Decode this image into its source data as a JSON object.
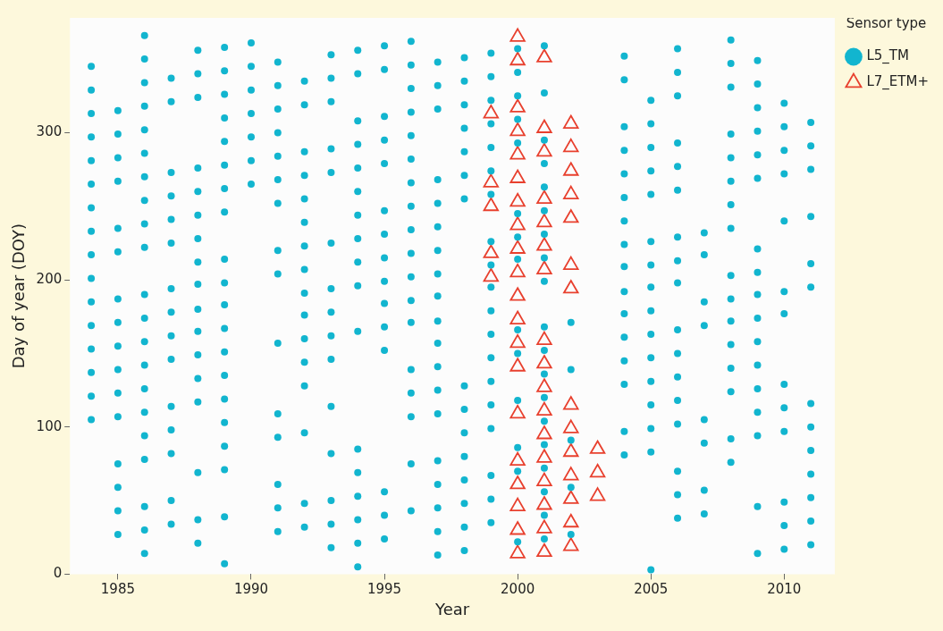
{
  "chart_data": {
    "type": "scatter",
    "xlabel": "Year",
    "ylabel": "Day of year (DOY)",
    "legend_title": "Sensor type",
    "legend": "top right",
    "grid": false,
    "xlim": [
      1983.2,
      2011.9
    ],
    "xticks": [
      1985,
      1990,
      1995,
      2000,
      2005,
      2010
    ],
    "ylim": [
      0,
      378
    ],
    "yticks": [
      0,
      100,
      200,
      300
    ],
    "series": [
      {
        "name": "L5_TM",
        "color": "#12b5cf",
        "marker": "circle",
        "x": [
          1984,
          1984,
          1984,
          1984,
          1984,
          1984,
          1984,
          1984,
          1984,
          1984,
          1984,
          1984,
          1984,
          1984,
          1984,
          1984,
          1985,
          1985,
          1985,
          1985,
          1985,
          1985,
          1985,
          1985,
          1985,
          1985,
          1985,
          1985,
          1985,
          1985,
          1985,
          1985,
          1986,
          1986,
          1986,
          1986,
          1986,
          1986,
          1986,
          1986,
          1986,
          1986,
          1986,
          1986,
          1986,
          1986,
          1986,
          1986,
          1986,
          1986,
          1986,
          1986,
          1986,
          1987,
          1987,
          1987,
          1987,
          1987,
          1987,
          1987,
          1987,
          1987,
          1987,
          1987,
          1987,
          1987,
          1987,
          1987,
          1988,
          1988,
          1988,
          1988,
          1988,
          1988,
          1988,
          1988,
          1988,
          1988,
          1988,
          1988,
          1988,
          1988,
          1988,
          1988,
          1988,
          1989,
          1989,
          1989,
          1989,
          1989,
          1989,
          1989,
          1989,
          1989,
          1989,
          1989,
          1989,
          1989,
          1989,
          1989,
          1989,
          1989,
          1989,
          1989,
          1989,
          1990,
          1990,
          1990,
          1990,
          1990,
          1990,
          1990,
          1991,
          1991,
          1991,
          1991,
          1991,
          1991,
          1991,
          1991,
          1991,
          1991,
          1991,
          1991,
          1991,
          1991,
          1991,
          1992,
          1992,
          1992,
          1992,
          1992,
          1992,
          1992,
          1992,
          1992,
          1992,
          1992,
          1992,
          1992,
          1992,
          1992,
          1992,
          1993,
          1993,
          1993,
          1993,
          1993,
          1993,
          1993,
          1993,
          1993,
          1993,
          1993,
          1993,
          1993,
          1993,
          1993,
          1994,
          1994,
          1994,
          1994,
          1994,
          1994,
          1994,
          1994,
          1994,
          1994,
          1994,
          1994,
          1994,
          1994,
          1994,
          1994,
          1994,
          1995,
          1995,
          1995,
          1995,
          1995,
          1995,
          1995,
          1995,
          1995,
          1995,
          1995,
          1995,
          1995,
          1995,
          1995,
          1996,
          1996,
          1996,
          1996,
          1996,
          1996,
          1996,
          1996,
          1996,
          1996,
          1996,
          1996,
          1996,
          1996,
          1996,
          1996,
          1996,
          1996,
          1997,
          1997,
          1997,
          1997,
          1997,
          1997,
          1997,
          1997,
          1997,
          1997,
          1997,
          1997,
          1997,
          1997,
          1997,
          1997,
          1997,
          1997,
          1997,
          1998,
          1998,
          1998,
          1998,
          1998,
          1998,
          1998,
          1998,
          1998,
          1998,
          1998,
          1998,
          1998,
          1998,
          1998,
          1999,
          1999,
          1999,
          1999,
          1999,
          1999,
          1999,
          1999,
          1999,
          1999,
          1999,
          1999,
          1999,
          1999,
          1999,
          1999,
          1999,
          1999,
          1999,
          2000,
          2000,
          2000,
          2000,
          2000,
          2000,
          2000,
          2000,
          2000,
          2000,
          2000,
          2000,
          2000,
          2000,
          2001,
          2001,
          2001,
          2001,
          2001,
          2001,
          2001,
          2001,
          2001,
          2001,
          2001,
          2001,
          2001,
          2001,
          2001,
          2001,
          2001,
          2001,
          2001,
          2002,
          2002,
          2002,
          2002,
          2002,
          2004,
          2004,
          2004,
          2004,
          2004,
          2004,
          2004,
          2004,
          2004,
          2004,
          2004,
          2004,
          2004,
          2004,
          2004,
          2004,
          2005,
          2005,
          2005,
          2005,
          2005,
          2005,
          2005,
          2005,
          2005,
          2005,
          2005,
          2005,
          2005,
          2005,
          2005,
          2005,
          2006,
          2006,
          2006,
          2006,
          2006,
          2006,
          2006,
          2006,
          2006,
          2006,
          2006,
          2006,
          2006,
          2006,
          2006,
          2006,
          2006,
          2007,
          2007,
          2007,
          2007,
          2007,
          2007,
          2007,
          2007,
          2008,
          2008,
          2008,
          2008,
          2008,
          2008,
          2008,
          2008,
          2008,
          2008,
          2008,
          2008,
          2008,
          2008,
          2008,
          2008,
          2009,
          2009,
          2009,
          2009,
          2009,
          2009,
          2009,
          2009,
          2009,
          2009,
          2009,
          2009,
          2009,
          2009,
          2009,
          2009,
          2009,
          2010,
          2010,
          2010,
          2010,
          2010,
          2010,
          2010,
          2010,
          2010,
          2010,
          2010,
          2010,
          2010,
          2011,
          2011,
          2011,
          2011,
          2011,
          2011,
          2011,
          2011,
          2011,
          2011,
          2011,
          2011,
          2011
        ],
        "values": [
          345,
          329,
          313,
          297,
          281,
          265,
          249,
          233,
          217,
          201,
          185,
          169,
          153,
          137,
          121,
          105,
          315,
          299,
          283,
          267,
          235,
          219,
          187,
          171,
          155,
          139,
          123,
          107,
          75,
          59,
          43,
          27,
          366,
          350,
          334,
          318,
          302,
          286,
          270,
          254,
          238,
          222,
          190,
          174,
          158,
          142,
          126,
          110,
          94,
          78,
          46,
          30,
          14,
          337,
          321,
          273,
          257,
          241,
          225,
          194,
          178,
          162,
          146,
          114,
          98,
          82,
          50,
          34,
          356,
          340,
          324,
          276,
          260,
          244,
          228,
          212,
          197,
          180,
          165,
          149,
          133,
          117,
          69,
          37,
          21,
          358,
          342,
          326,
          310,
          294,
          278,
          262,
          246,
          214,
          198,
          183,
          167,
          151,
          135,
          119,
          103,
          87,
          71,
          39,
          7,
          361,
          345,
          329,
          313,
          297,
          281,
          265,
          348,
          332,
          316,
          300,
          284,
          268,
          252,
          220,
          204,
          157,
          109,
          93,
          61,
          45,
          29,
          335,
          319,
          287,
          271,
          255,
          239,
          223,
          207,
          191,
          176,
          160,
          144,
          128,
          96,
          48,
          32,
          353,
          337,
          321,
          289,
          273,
          225,
          194,
          178,
          162,
          146,
          114,
          82,
          50,
          34,
          18,
          356,
          340,
          308,
          292,
          276,
          260,
          244,
          228,
          212,
          196,
          165,
          85,
          69,
          53,
          37,
          21,
          5,
          359,
          343,
          311,
          295,
          279,
          247,
          231,
          215,
          199,
          184,
          168,
          152,
          56,
          40,
          24,
          362,
          346,
          330,
          314,
          298,
          282,
          266,
          250,
          234,
          218,
          202,
          186,
          171,
          139,
          123,
          107,
          75,
          43,
          348,
          332,
          316,
          268,
          252,
          236,
          220,
          204,
          189,
          172,
          157,
          141,
          125,
          109,
          77,
          61,
          45,
          29,
          13,
          351,
          335,
          319,
          303,
          287,
          271,
          255,
          128,
          112,
          96,
          80,
          64,
          48,
          32,
          16,
          354,
          338,
          322,
          306,
          290,
          274,
          258,
          226,
          210,
          195,
          179,
          163,
          147,
          131,
          115,
          99,
          67,
          51,
          35,
          357,
          341,
          325,
          309,
          293,
          245,
          229,
          214,
          166,
          150,
          118,
          86,
          70,
          22,
          359,
          327,
          295,
          279,
          263,
          247,
          231,
          215,
          199,
          168,
          152,
          136,
          120,
          104,
          88,
          72,
          56,
          40,
          24,
          171,
          139,
          91,
          59,
          27,
          352,
          336,
          304,
          288,
          272,
          256,
          240,
          224,
          209,
          192,
          177,
          161,
          145,
          129,
          97,
          81,
          322,
          306,
          290,
          274,
          258,
          226,
          210,
          195,
          179,
          163,
          147,
          131,
          115,
          99,
          83,
          3,
          357,
          341,
          325,
          293,
          277,
          261,
          229,
          213,
          198,
          166,
          150,
          134,
          118,
          102,
          70,
          54,
          38,
          232,
          217,
          185,
          169,
          105,
          89,
          57,
          41,
          363,
          347,
          331,
          299,
          283,
          267,
          251,
          235,
          203,
          187,
          172,
          156,
          140,
          124,
          92,
          76,
          349,
          333,
          317,
          301,
          285,
          269,
          221,
          205,
          190,
          174,
          158,
          142,
          126,
          110,
          94,
          46,
          14,
          320,
          304,
          288,
          272,
          240,
          192,
          177,
          129,
          113,
          97,
          49,
          33,
          17,
          307,
          291,
          275,
          243,
          211,
          195,
          116,
          100,
          84,
          68,
          52,
          36,
          20
        ]
      },
      {
        "name": "L7_ETM+",
        "color": "#e8402e",
        "marker": "triangle",
        "x": [
          1999,
          1999,
          1999,
          1999,
          1999,
          2000,
          2000,
          2000,
          2000,
          2000,
          2000,
          2000,
          2000,
          2000,
          2000,
          2000,
          2000,
          2000,
          2000,
          2000,
          2000,
          2000,
          2000,
          2000,
          2000,
          2001,
          2001,
          2001,
          2001,
          2001,
          2001,
          2001,
          2001,
          2001,
          2001,
          2001,
          2001,
          2001,
          2001,
          2001,
          2001,
          2001,
          2002,
          2002,
          2002,
          2002,
          2002,
          2002,
          2002,
          2002,
          2002,
          2002,
          2002,
          2002,
          2002,
          2002,
          2003,
          2003,
          2003
        ],
        "values": [
          313,
          266,
          250,
          218,
          202,
          365,
          349,
          317,
          301,
          285,
          269,
          253,
          237,
          221,
          205,
          189,
          173,
          157,
          141,
          109,
          77,
          61,
          46,
          30,
          14,
          351,
          303,
          287,
          255,
          239,
          223,
          207,
          159,
          143,
          127,
          111,
          95,
          79,
          63,
          47,
          31,
          15,
          306,
          290,
          274,
          258,
          242,
          210,
          194,
          115,
          99,
          83,
          67,
          51,
          35,
          19,
          85,
          69,
          53
        ]
      }
    ]
  }
}
